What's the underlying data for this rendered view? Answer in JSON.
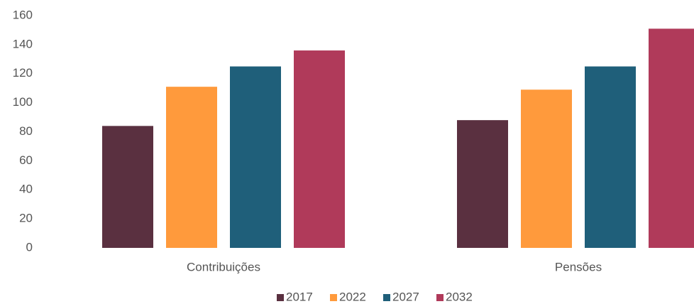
{
  "chart_data": {
    "type": "bar",
    "categories": [
      "Contribuições",
      "Pensões"
    ],
    "series": [
      {
        "name": "2017",
        "color": "#5a3040",
        "values": [
          84,
          88
        ]
      },
      {
        "name": "2022",
        "color": "#ff9a3c",
        "values": [
          111,
          109
        ]
      },
      {
        "name": "2027",
        "color": "#1f5f7a",
        "values": [
          125,
          125
        ]
      },
      {
        "name": "2032",
        "color": "#b03a5a",
        "values": [
          136,
          151
        ]
      }
    ],
    "ylim": [
      0,
      160
    ],
    "yticks": [
      0,
      20,
      40,
      60,
      80,
      100,
      120,
      140,
      160
    ],
    "grid": false,
    "legend": "bottom"
  }
}
